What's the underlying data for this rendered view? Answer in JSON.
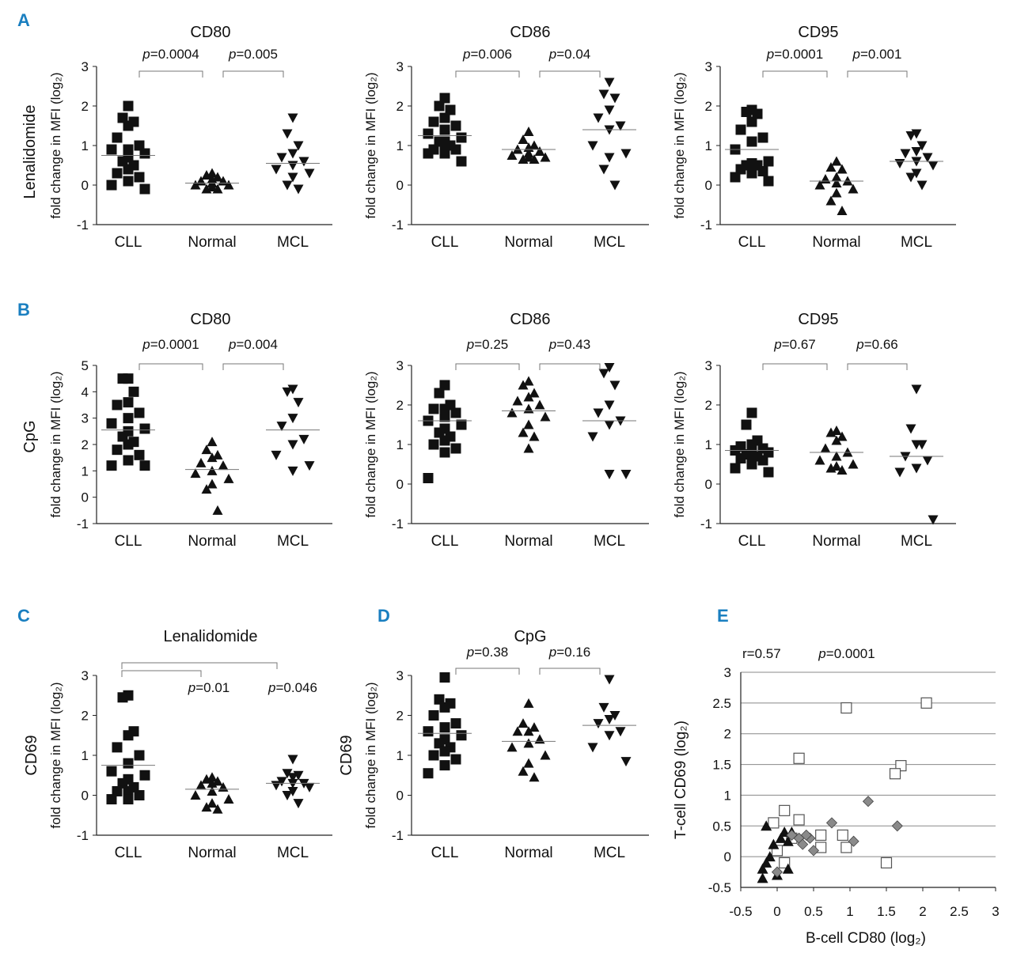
{
  "figure": {
    "categories": [
      "CLL",
      "Normal",
      "MCL"
    ],
    "row_a_side_label": "Lenalidomide",
    "row_b_side_label": "CpG",
    "y_axis_label": "fold change in MFI (log₂)",
    "cd69_label": "CD69"
  },
  "chart_data": [
    {
      "id": "A-CD80",
      "panel_letter": "A",
      "type": "scatter",
      "title": "CD80",
      "ylim": [
        -1,
        3
      ],
      "yticks": [
        "3",
        "2",
        "1",
        "0",
        "-1"
      ],
      "categories": [
        "CLL",
        "Normal",
        "MCL"
      ],
      "series": [
        {
          "name": "CLL",
          "marker": "square",
          "values": [
            2.0,
            1.7,
            1.6,
            1.5,
            1.2,
            1.0,
            0.9,
            0.9,
            0.8,
            0.7,
            0.6,
            0.5,
            0.4,
            0.3,
            0.2,
            0.1,
            0.0,
            -0.1
          ],
          "median": 0.75
        },
        {
          "name": "Normal",
          "marker": "triangle-up",
          "values": [
            0.3,
            0.25,
            0.2,
            0.15,
            0.1,
            0.1,
            0.05,
            0.0,
            0.0,
            -0.05,
            -0.1,
            -0.1
          ],
          "median": 0.05
        },
        {
          "name": "MCL",
          "marker": "triangle-down",
          "values": [
            1.7,
            1.3,
            1.0,
            0.8,
            0.7,
            0.6,
            0.5,
            0.4,
            0.3,
            0.2,
            0.0,
            -0.1
          ],
          "median": 0.55
        }
      ],
      "pvalues": [
        {
          "label": "p",
          "value": "=0.0004"
        },
        {
          "label": "p",
          "value": "=0.005"
        }
      ]
    },
    {
      "id": "A-CD86",
      "panel_letter": "",
      "type": "scatter",
      "title": "CD86",
      "ylim": [
        -1,
        3
      ],
      "yticks": [
        "3",
        "2",
        "1",
        "0",
        "-1"
      ],
      "categories": [
        "CLL",
        "Normal",
        "MCL"
      ],
      "series": [
        {
          "name": "CLL",
          "marker": "square",
          "values": [
            2.2,
            2.0,
            1.9,
            1.7,
            1.6,
            1.5,
            1.4,
            1.3,
            1.2,
            1.1,
            1.1,
            1.0,
            1.0,
            0.9,
            0.9,
            0.8,
            0.8,
            0.6
          ],
          "median": 1.25
        },
        {
          "name": "Normal",
          "marker": "triangle-up",
          "values": [
            1.35,
            1.15,
            1.0,
            0.95,
            0.9,
            0.85,
            0.8,
            0.75,
            0.7,
            0.7,
            0.65,
            0.65
          ],
          "median": 0.9
        },
        {
          "name": "MCL",
          "marker": "triangle-down",
          "values": [
            2.6,
            2.3,
            2.2,
            1.9,
            1.7,
            1.5,
            1.4,
            1.0,
            0.8,
            0.7,
            0.4,
            0.0
          ],
          "median": 1.4
        }
      ],
      "pvalues": [
        {
          "label": "p",
          "value": "=0.006"
        },
        {
          "label": "p",
          "value": "=0.04"
        }
      ]
    },
    {
      "id": "A-CD95",
      "panel_letter": "",
      "type": "scatter",
      "title": "CD95",
      "ylim": [
        -1,
        3
      ],
      "yticks": [
        "3",
        "2",
        "1",
        "0",
        "-1"
      ],
      "categories": [
        "CLL",
        "Normal",
        "MCL"
      ],
      "series": [
        {
          "name": "CLL",
          "marker": "square",
          "values": [
            1.9,
            1.85,
            1.8,
            1.6,
            1.4,
            1.2,
            1.1,
            0.9,
            0.6,
            0.55,
            0.5,
            0.5,
            0.45,
            0.4,
            0.35,
            0.3,
            0.2,
            0.1
          ],
          "median": 0.9
        },
        {
          "name": "Normal",
          "marker": "triangle-up",
          "values": [
            0.6,
            0.45,
            0.4,
            0.2,
            0.15,
            0.1,
            0.05,
            0.0,
            -0.1,
            -0.2,
            -0.4,
            -0.65
          ],
          "median": 0.1
        },
        {
          "name": "MCL",
          "marker": "triangle-down",
          "values": [
            1.3,
            1.25,
            1.0,
            0.85,
            0.8,
            0.7,
            0.6,
            0.55,
            0.5,
            0.3,
            0.2,
            0.0
          ],
          "median": 0.6
        }
      ],
      "pvalues": [
        {
          "label": "p",
          "value": "=0.0001"
        },
        {
          "label": "p",
          "value": "=0.001"
        }
      ]
    },
    {
      "id": "B-CD80",
      "panel_letter": "B",
      "type": "scatter",
      "title": "CD80",
      "ylim": [
        -1,
        5
      ],
      "yticks": [
        "5",
        "4",
        "3",
        "2",
        "1",
        "0",
        "-1"
      ],
      "categories": [
        "CLL",
        "Normal",
        "MCL"
      ],
      "series": [
        {
          "name": "CLL",
          "marker": "square",
          "values": [
            4.5,
            4.5,
            4.0,
            3.6,
            3.5,
            3.2,
            3.0,
            2.8,
            2.6,
            2.5,
            2.3,
            2.1,
            2.0,
            1.8,
            1.6,
            1.4,
            1.2,
            1.2
          ],
          "median": 2.55
        },
        {
          "name": "Normal",
          "marker": "triangle-up",
          "values": [
            2.1,
            1.8,
            1.6,
            1.5,
            1.3,
            1.2,
            1.0,
            0.9,
            0.7,
            0.5,
            0.3,
            -0.5
          ],
          "median": 1.05
        },
        {
          "name": "MCL",
          "marker": "triangle-down",
          "values": [
            4.1,
            4.0,
            3.6,
            3.0,
            2.7,
            2.2,
            2.0,
            1.6,
            1.2,
            1.0
          ],
          "median": 2.55
        }
      ],
      "pvalues": [
        {
          "label": "p",
          "value": "=0.0001"
        },
        {
          "label": "p",
          "value": "=0.004"
        }
      ]
    },
    {
      "id": "B-CD86",
      "panel_letter": "",
      "type": "scatter",
      "title": "CD86",
      "ylim": [
        -1,
        3
      ],
      "yticks": [
        "3",
        "2",
        "1",
        "0",
        "-1"
      ],
      "categories": [
        "CLL",
        "Normal",
        "MCL"
      ],
      "series": [
        {
          "name": "CLL",
          "marker": "square",
          "values": [
            2.5,
            2.3,
            2.0,
            1.9,
            1.9,
            1.8,
            1.7,
            1.6,
            1.5,
            1.4,
            1.3,
            1.2,
            1.1,
            1.0,
            0.9,
            0.8,
            0.15
          ],
          "median": 1.6
        },
        {
          "name": "Normal",
          "marker": "triangle-up",
          "values": [
            2.6,
            2.5,
            2.3,
            2.2,
            2.1,
            2.0,
            1.9,
            1.8,
            1.7,
            1.5,
            1.3,
            1.2,
            0.9
          ],
          "median": 1.85
        },
        {
          "name": "MCL",
          "marker": "triangle-down",
          "values": [
            2.95,
            2.8,
            2.5,
            2.0,
            1.8,
            1.6,
            1.5,
            1.2,
            0.25,
            0.25
          ],
          "median": 1.6
        }
      ],
      "pvalues": [
        {
          "label": "p",
          "value": "=0.25"
        },
        {
          "label": "p",
          "value": "=0.43"
        }
      ]
    },
    {
      "id": "B-CD95",
      "panel_letter": "",
      "type": "scatter",
      "title": "CD95",
      "ylim": [
        -1,
        3
      ],
      "yticks": [
        "3",
        "2",
        "1",
        "0",
        "-1"
      ],
      "categories": [
        "CLL",
        "Normal",
        "MCL"
      ],
      "series": [
        {
          "name": "CLL",
          "marker": "square",
          "values": [
            1.8,
            1.5,
            1.1,
            1.0,
            0.95,
            0.9,
            0.9,
            0.85,
            0.8,
            0.8,
            0.75,
            0.7,
            0.7,
            0.65,
            0.6,
            0.5,
            0.4,
            0.3
          ],
          "median": 0.85
        },
        {
          "name": "Normal",
          "marker": "triangle-up",
          "values": [
            1.35,
            1.3,
            1.2,
            1.1,
            0.9,
            0.8,
            0.7,
            0.6,
            0.5,
            0.45,
            0.4,
            0.35
          ],
          "median": 0.8
        },
        {
          "name": "MCL",
          "marker": "triangle-down",
          "values": [
            2.4,
            1.4,
            1.0,
            1.0,
            0.7,
            0.6,
            0.4,
            0.3,
            -0.9
          ],
          "median": 0.7
        }
      ],
      "pvalues": [
        {
          "label": "p",
          "value": "=0.67"
        },
        {
          "label": "p",
          "value": "=0.66"
        }
      ]
    },
    {
      "id": "C-CD69",
      "panel_letter": "C",
      "type": "scatter",
      "title": "Lenalidomide",
      "ylim": [
        -1,
        3
      ],
      "yticks": [
        "3",
        "2",
        "1",
        "0",
        "-1"
      ],
      "categories": [
        "CLL",
        "Normal",
        "MCL"
      ],
      "series": [
        {
          "name": "CLL",
          "marker": "square",
          "values": [
            2.5,
            2.45,
            1.6,
            1.5,
            1.2,
            1.0,
            0.8,
            0.6,
            0.5,
            0.4,
            0.3,
            0.2,
            0.1,
            0.1,
            0.0,
            -0.1,
            -0.1
          ],
          "median": 0.75
        },
        {
          "name": "Normal",
          "marker": "triangle-up",
          "values": [
            0.45,
            0.4,
            0.35,
            0.3,
            0.25,
            0.2,
            0.1,
            0.0,
            -0.1,
            -0.2,
            -0.3,
            -0.35
          ],
          "median": 0.15
        },
        {
          "name": "MCL",
          "marker": "triangle-down",
          "values": [
            0.9,
            0.55,
            0.5,
            0.45,
            0.35,
            0.3,
            0.3,
            0.25,
            0.2,
            0.1,
            0.0,
            -0.2
          ],
          "median": 0.3
        }
      ],
      "pvalues": [
        {
          "label": "p",
          "value": "=0.01"
        },
        {
          "label": "p",
          "value": "=0.046"
        }
      ]
    },
    {
      "id": "D-CD69",
      "panel_letter": "D",
      "type": "scatter",
      "title": "CpG",
      "ylim": [
        -1,
        3
      ],
      "yticks": [
        "3",
        "2",
        "1",
        "0",
        "-1"
      ],
      "categories": [
        "CLL",
        "Normal",
        "MCL"
      ],
      "series": [
        {
          "name": "CLL",
          "marker": "square",
          "values": [
            2.95,
            2.4,
            2.3,
            2.2,
            2.0,
            1.8,
            1.7,
            1.6,
            1.5,
            1.4,
            1.3,
            1.2,
            1.1,
            1.0,
            0.9,
            0.75,
            0.55
          ],
          "median": 1.55
        },
        {
          "name": "Normal",
          "marker": "triangle-up",
          "values": [
            2.3,
            1.8,
            1.7,
            1.6,
            1.6,
            1.4,
            1.3,
            1.2,
            1.0,
            0.8,
            0.6,
            0.45
          ],
          "median": 1.35
        },
        {
          "name": "MCL",
          "marker": "triangle-down",
          "values": [
            2.9,
            2.2,
            2.0,
            1.9,
            1.8,
            1.6,
            1.5,
            1.2,
            0.85
          ],
          "median": 1.75
        }
      ],
      "pvalues": [
        {
          "label": "p",
          "value": "=0.38"
        },
        {
          "label": "p",
          "value": "=0.16"
        }
      ]
    },
    {
      "id": "E-correlation",
      "panel_letter": "E",
      "type": "scatter",
      "title": "",
      "xlabel": "B-cell CD80 (log₂)",
      "ylabel": "T-cell CD69 (log₂)",
      "xlim": [
        -0.5,
        3
      ],
      "ylim": [
        -0.5,
        3
      ],
      "xticks": [
        "-0.5",
        "0",
        "0.5",
        "1",
        "1.5",
        "2",
        "2.5",
        "3"
      ],
      "yticks": [
        "3",
        "2.5",
        "2",
        "1.5",
        "1",
        "0.5",
        "0",
        "-0.5"
      ],
      "grid": true,
      "r_label": "r=0.57",
      "p_label": "p",
      "p_value": "=0.0001",
      "series": [
        {
          "name": "CLL",
          "marker": "open-square",
          "points": [
            [
              2.05,
              2.5
            ],
            [
              0.95,
              2.42
            ],
            [
              0.3,
              1.6
            ],
            [
              1.7,
              1.48
            ],
            [
              1.62,
              1.35
            ],
            [
              0.1,
              0.75
            ],
            [
              0.3,
              0.6
            ],
            [
              -0.05,
              0.55
            ],
            [
              0.6,
              0.35
            ],
            [
              0.9,
              0.35
            ],
            [
              0.2,
              0.3
            ],
            [
              0.0,
              0.1
            ],
            [
              0.6,
              0.15
            ],
            [
              0.95,
              0.15
            ],
            [
              1.5,
              -0.1
            ],
            [
              0.1,
              -0.1
            ]
          ]
        },
        {
          "name": "Normal",
          "marker": "filled-triangle",
          "points": [
            [
              -0.15,
              0.5
            ],
            [
              0.1,
              0.4
            ],
            [
              0.2,
              0.4
            ],
            [
              0.05,
              0.3
            ],
            [
              -0.05,
              0.2
            ],
            [
              0.15,
              0.25
            ],
            [
              -0.1,
              0.0
            ],
            [
              -0.15,
              -0.1
            ],
            [
              -0.2,
              -0.2
            ],
            [
              0.0,
              -0.3
            ],
            [
              -0.2,
              -0.35
            ],
            [
              0.15,
              -0.2
            ]
          ]
        },
        {
          "name": "MCL",
          "marker": "gray-diamond",
          "points": [
            [
              1.25,
              0.9
            ],
            [
              1.65,
              0.5
            ],
            [
              0.75,
              0.55
            ],
            [
              0.45,
              0.3
            ],
            [
              0.4,
              0.35
            ],
            [
              0.3,
              0.3
            ],
            [
              1.05,
              0.25
            ],
            [
              0.35,
              0.2
            ],
            [
              0.5,
              0.1
            ],
            [
              0.0,
              -0.25
            ],
            [
              0.2,
              0.35
            ]
          ]
        }
      ]
    }
  ]
}
